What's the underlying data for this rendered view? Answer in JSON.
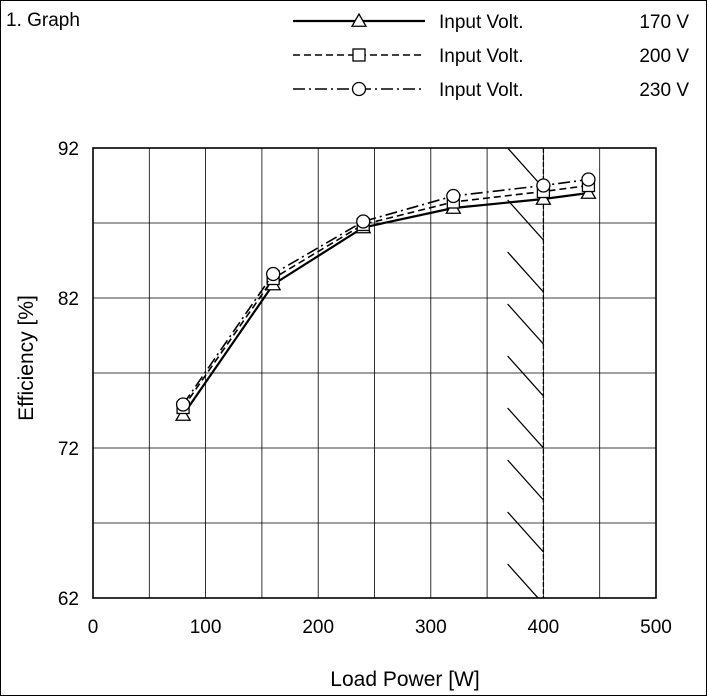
{
  "caption": "1. Graph",
  "chart_data": {
    "type": "line",
    "xlabel": "Load Power [W]",
    "ylabel": "Efficiency [%]",
    "xlim": [
      0,
      500
    ],
    "ylim": [
      62,
      92
    ],
    "x_ticks": [
      0,
      100,
      200,
      300,
      400,
      500
    ],
    "y_ticks": [
      62,
      72,
      82,
      92
    ],
    "grid": true,
    "legend_position": "top",
    "x": [
      80,
      160,
      240,
      320,
      400,
      440
    ],
    "series": [
      {
        "name": "Input Volt.",
        "voltage": "170 V",
        "marker": "triangle",
        "dash": "solid",
        "values": [
          74.2,
          82.9,
          86.7,
          88.0,
          88.6,
          89.0
        ]
      },
      {
        "name": "Input Volt.",
        "voltage": "200 V",
        "marker": "square",
        "dash": "dashed",
        "values": [
          74.7,
          83.3,
          86.9,
          88.4,
          89.1,
          89.5
        ]
      },
      {
        "name": "Input Volt.",
        "voltage": "230 V",
        "marker": "circle",
        "dash": "dash-dot",
        "values": [
          74.9,
          83.6,
          87.1,
          88.8,
          89.5,
          89.9
        ]
      }
    ],
    "hatched_region": {
      "x_from": 370,
      "x_to": 400
    },
    "color": "#000000"
  }
}
